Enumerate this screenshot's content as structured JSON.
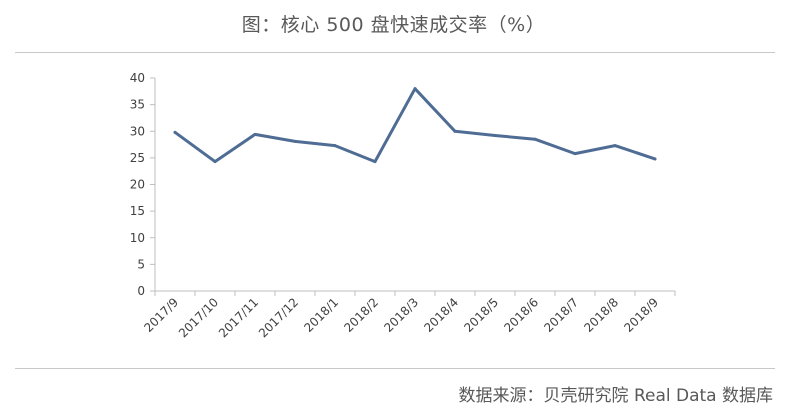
{
  "header": {
    "title": "图：核心 500 盘快速成交率（%）"
  },
  "footer": {
    "source": "数据来源：贝壳研究院 Real Data 数据库"
  },
  "colors": {
    "line": "#4f6d94",
    "axis": "#bfbfbf",
    "text": "#404040"
  },
  "chart_data": {
    "type": "line",
    "title": "图：核心 500 盘快速成交率（%）",
    "categories": [
      "2017/9",
      "2017/10",
      "2017/11",
      "2017/12",
      "2018/1",
      "2018/2",
      "2018/3",
      "2018/4",
      "2018/5",
      "2018/6",
      "2018/7",
      "2018/8",
      "2018/9"
    ],
    "series": [
      {
        "values": [
          29.8,
          24.3,
          29.4,
          28.1,
          27.3,
          24.3,
          38.0,
          30.0,
          29.2,
          28.5,
          25.8,
          27.3,
          24.8
        ]
      }
    ],
    "ylim": [
      0,
      40
    ],
    "yticks": [
      0,
      5,
      10,
      15,
      20,
      25,
      30,
      35,
      40
    ],
    "grid": false,
    "legend": "none"
  }
}
